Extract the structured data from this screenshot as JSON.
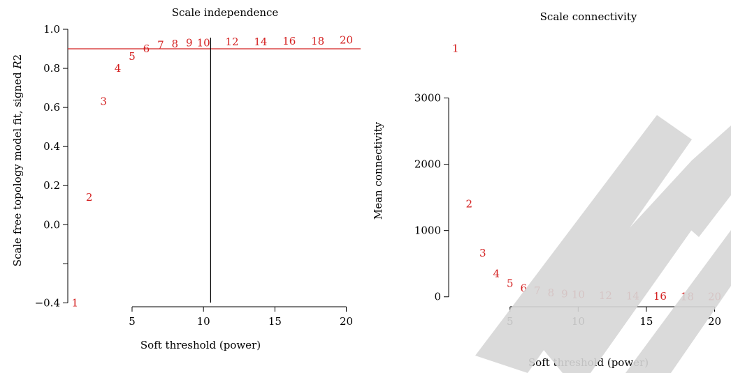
{
  "chart_data": [
    {
      "type": "scatter",
      "title": "Scale independence",
      "xlabel": "Soft threshold (power)",
      "ylabel_main": "Scale free topology model fit, signed ",
      "ylabel_italic": "R",
      "ylabel_sup": "2",
      "xlim": [
        0.5,
        21
      ],
      "ylim": [
        -0.42,
        1.0
      ],
      "xticks": [
        "5",
        "10",
        "15",
        "20"
      ],
      "xtick_values": [
        5,
        10,
        15,
        20
      ],
      "yticks": [
        "−0.4",
        "0.0",
        "0.2",
        "0.4",
        "0.6",
        "0.8",
        "1.0"
      ],
      "ytick_values": [
        -0.4,
        0.0,
        0.2,
        0.4,
        0.6,
        0.8,
        1.0
      ],
      "ytick_unlabeled_values": [
        -0.2
      ],
      "hline": 0.9,
      "vline": 10.5,
      "points": [
        {
          "x": 1,
          "y": -0.4,
          "label": "1"
        },
        {
          "x": 2,
          "y": 0.14,
          "label": "2"
        },
        {
          "x": 3,
          "y": 0.63,
          "label": "3"
        },
        {
          "x": 4,
          "y": 0.8,
          "label": "4"
        },
        {
          "x": 5,
          "y": 0.86,
          "label": "5"
        },
        {
          "x": 6,
          "y": 0.9,
          "label": "6"
        },
        {
          "x": 7,
          "y": 0.92,
          "label": "7"
        },
        {
          "x": 8,
          "y": 0.925,
          "label": "8"
        },
        {
          "x": 9,
          "y": 0.93,
          "label": "9"
        },
        {
          "x": 10,
          "y": 0.93,
          "label": "10"
        },
        {
          "x": 12,
          "y": 0.935,
          "label": "12"
        },
        {
          "x": 14,
          "y": 0.935,
          "label": "14"
        },
        {
          "x": 16,
          "y": 0.94,
          "label": "16"
        },
        {
          "x": 18,
          "y": 0.94,
          "label": "18"
        },
        {
          "x": 20,
          "y": 0.945,
          "label": "20"
        }
      ],
      "point_color": "#d42020",
      "hline_color": "#d42020"
    },
    {
      "type": "scatter",
      "title": "Scale connectivity",
      "xlabel": "Soft threshold (power)",
      "ylabel": "Mean connectivity",
      "xlim": [
        0.5,
        21
      ],
      "ylim": [
        -150,
        3900
      ],
      "xticks": [
        "5",
        "10",
        "15",
        "20"
      ],
      "xtick_values": [
        5,
        10,
        15,
        20
      ],
      "yticks": [
        "0",
        "1000",
        "2000",
        "3000"
      ],
      "ytick_values": [
        0,
        1000,
        2000,
        3000
      ],
      "points": [
        {
          "x": 1,
          "y": 3750,
          "label": "1"
        },
        {
          "x": 2,
          "y": 1400,
          "label": "2"
        },
        {
          "x": 3,
          "y": 660,
          "label": "3"
        },
        {
          "x": 4,
          "y": 350,
          "label": "4"
        },
        {
          "x": 5,
          "y": 200,
          "label": "5"
        },
        {
          "x": 6,
          "y": 130,
          "label": "6"
        },
        {
          "x": 7,
          "y": 90,
          "label": "7"
        },
        {
          "x": 8,
          "y": 60,
          "label": "8"
        },
        {
          "x": 9,
          "y": 45,
          "label": "9"
        },
        {
          "x": 10,
          "y": 35,
          "label": "10"
        },
        {
          "x": 12,
          "y": 20,
          "label": "12"
        },
        {
          "x": 14,
          "y": 12,
          "label": "14"
        },
        {
          "x": 16,
          "y": 8,
          "label": "16"
        },
        {
          "x": 18,
          "y": 5,
          "label": "18"
        },
        {
          "x": 20,
          "y": 3,
          "label": "20"
        }
      ],
      "point_color": "#d42020"
    }
  ]
}
